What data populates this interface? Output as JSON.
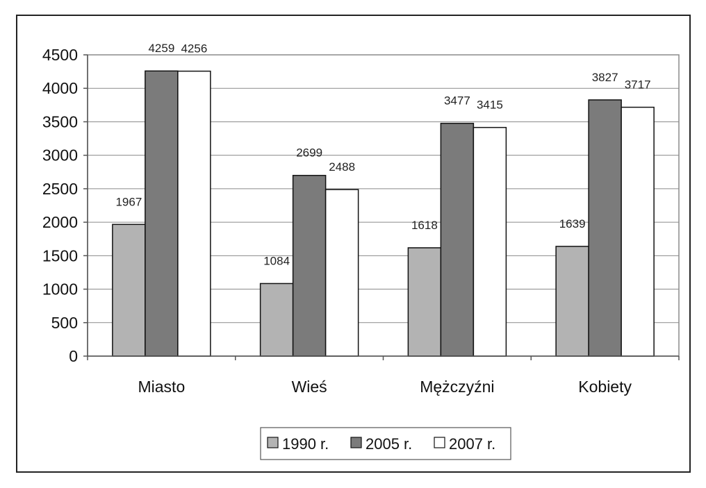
{
  "chart_data": {
    "type": "bar",
    "title": "",
    "xlabel": "",
    "ylabel": "",
    "categories": [
      "Miasto",
      "Wieś",
      "Mężczyźni",
      "Kobiety"
    ],
    "series": [
      {
        "name": "1990 r.",
        "values": [
          1967,
          1084,
          1618,
          1639
        ],
        "labels": [
          "1967",
          "1084",
          "1618",
          "1639"
        ],
        "color": "#b3b3b3"
      },
      {
        "name": "2005 r.",
        "values": [
          4259,
          2699,
          3477,
          3827
        ],
        "labels": [
          "4259",
          "2699",
          "3477",
          "3827"
        ],
        "color": "#7b7b7b"
      },
      {
        "name": "2007 r.",
        "values": [
          4256,
          2488,
          3415,
          3717
        ],
        "labels": [
          "4256",
          "2488",
          "3415",
          "3717"
        ],
        "color": "#ffffff"
      }
    ],
    "ylim": [
      0,
      4500
    ],
    "yticks": [
      0,
      500,
      1000,
      1500,
      2000,
      2500,
      3000,
      3500,
      4000,
      4500
    ],
    "ytick_labels": [
      "0",
      "500",
      "1000",
      "1500",
      "2000",
      "2500",
      "3000",
      "3500",
      "4000",
      "4500"
    ],
    "grid": true,
    "legend_position": "bottom"
  }
}
